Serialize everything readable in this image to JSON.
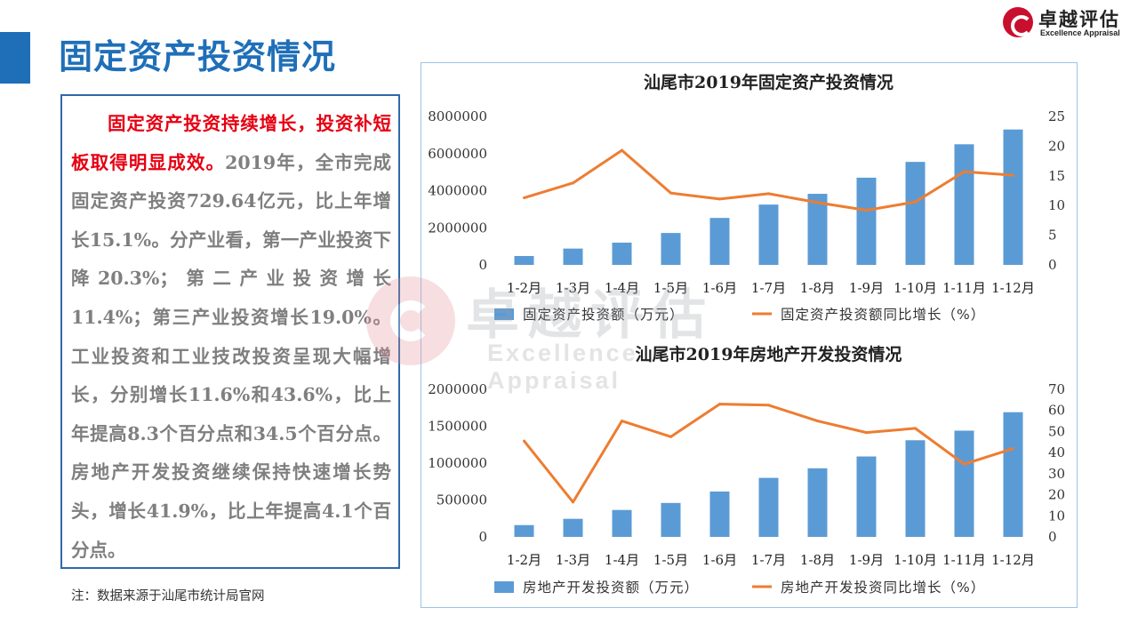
{
  "header": {
    "title": "固定资产投资情况"
  },
  "logo": {
    "cn": "卓越评估",
    "en": "Excellence Appraisal"
  },
  "textbox": {
    "highlight": "固定资产投资持续增长，投资补短板取得明显成效。",
    "body": "2019年，全市完成固定资产投资729.64亿元，比上年增长15.1%。分产业看，第一产业投资下降20.3%；第二产业投资增长11.4%；第三产业投资增长19.0%。工业投资和工业技改投资呈现大幅增长，分别增长11.6%和43.6%，比上年提高8.3个百分点和34.5个百分点。房地产开发投资继续保持快速增长势头，增长41.9%，比上年提高4.1个百分点。"
  },
  "note": "注：数据来源于汕尾市统计局官网",
  "watermark": {
    "cn": "卓越评估",
    "en": "Excellence Appraisal"
  },
  "colors": {
    "accent": "#1f6fb8",
    "bar": "#5b9bd5",
    "line": "#ed7d31",
    "highlight": "#e60012"
  },
  "chart_data": [
    {
      "type": "bar",
      "title": "汕尾市2019年固定资产投资情况",
      "categories": [
        "1-2月",
        "1-3月",
        "1-4月",
        "1-5月",
        "1-6月",
        "1-7月",
        "1-8月",
        "1-9月",
        "1-10月",
        "1-11月",
        "1-12月"
      ],
      "series": [
        {
          "name": "固定资产投资额（万元）",
          "kind": "bar",
          "axis": "left",
          "values": [
            480000,
            880000,
            1200000,
            1720000,
            2530000,
            3250000,
            3830000,
            4700000,
            5550000,
            6500000,
            7296400
          ]
        },
        {
          "name": "固定资产投资额同比增长（%）",
          "kind": "line",
          "axis": "right",
          "values": [
            11.3,
            13.8,
            19.3,
            12.1,
            11.1,
            12.0,
            10.5,
            9.2,
            10.6,
            15.7,
            15.1
          ]
        }
      ],
      "yleft": {
        "min": 0,
        "max": 8000000,
        "ticks": [
          0,
          2000000,
          4000000,
          6000000,
          8000000
        ]
      },
      "yright": {
        "min": 0,
        "max": 25,
        "ticks": [
          0,
          5,
          10,
          15,
          20,
          25
        ]
      },
      "grid": false,
      "legend": "bottom"
    },
    {
      "type": "bar",
      "title": "汕尾市2019年房地产开发投资情况",
      "categories": [
        "1-2月",
        "1-3月",
        "1-4月",
        "1-5月",
        "1-6月",
        "1-7月",
        "1-8月",
        "1-9月",
        "1-10月",
        "1-11月",
        "1-12月"
      ],
      "series": [
        {
          "name": "房地产开发投资额（万元）",
          "kind": "bar",
          "axis": "left",
          "values": [
            160000,
            245000,
            365000,
            460000,
            615000,
            800000,
            930000,
            1090000,
            1310000,
            1440000,
            1690000
          ]
        },
        {
          "name": "房地产开发投资同比增长（%）",
          "kind": "line",
          "axis": "right",
          "values": [
            45.5,
            16.5,
            55.0,
            47.5,
            63.0,
            62.5,
            55.0,
            49.5,
            51.5,
            34.5,
            41.9
          ]
        }
      ],
      "yleft": {
        "min": 0,
        "max": 2000000,
        "ticks": [
          0,
          500000,
          1000000,
          1500000,
          2000000
        ]
      },
      "yright": {
        "min": 0,
        "max": 70,
        "ticks": [
          0,
          10,
          20,
          30,
          40,
          50,
          60,
          70
        ]
      },
      "grid": false,
      "legend": "bottom"
    }
  ]
}
